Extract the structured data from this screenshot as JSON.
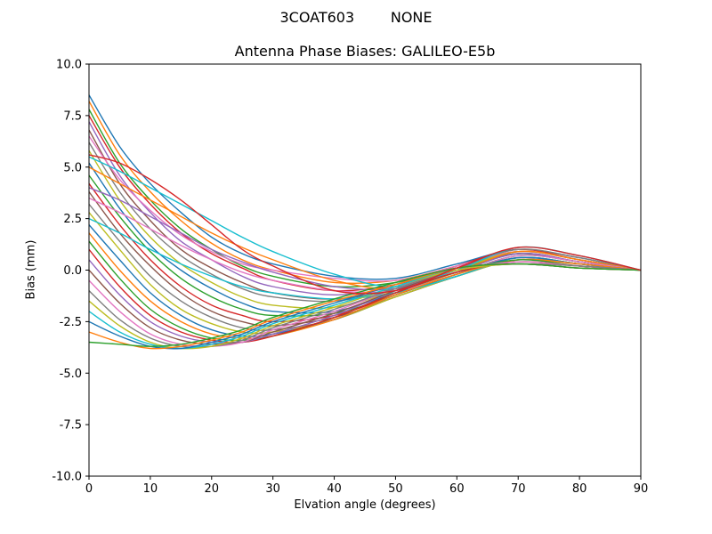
{
  "chart_data": {
    "type": "line",
    "suptitle": "3COAT603        NONE",
    "title": "Antenna Phase Biases: GALILEO-E5b",
    "xlabel": "Elvation angle (degrees)",
    "ylabel": "Bias (mm)",
    "xlim": [
      0,
      90
    ],
    "ylim": [
      -10,
      10
    ],
    "grid": false,
    "legend": "none",
    "xticks": [
      {
        "v": 0,
        "label": "0"
      },
      {
        "v": 10,
        "label": "10"
      },
      {
        "v": 20,
        "label": "20"
      },
      {
        "v": 30,
        "label": "30"
      },
      {
        "v": 40,
        "label": "40"
      },
      {
        "v": 50,
        "label": "50"
      },
      {
        "v": 60,
        "label": "60"
      },
      {
        "v": 70,
        "label": "70"
      },
      {
        "v": 80,
        "label": "80"
      },
      {
        "v": 90,
        "label": "90"
      }
    ],
    "yticks": [
      {
        "v": 10,
        "label": "10.0"
      },
      {
        "v": 7.5,
        "label": "7.5"
      },
      {
        "v": 5,
        "label": "5.0"
      },
      {
        "v": 2.5,
        "label": "2.5"
      },
      {
        "v": 0,
        "label": "0.0"
      },
      {
        "v": -2.5,
        "label": "-2.5"
      },
      {
        "v": -5,
        "label": "-5.0"
      },
      {
        "v": -7.5,
        "label": "-7.5"
      },
      {
        "v": -10,
        "label": "-10.0"
      }
    ],
    "x": [
      0,
      5,
      10,
      15,
      20,
      25,
      30,
      40,
      50,
      60,
      70,
      80,
      90
    ],
    "series": [
      {
        "color": "#1f77b4",
        "values": [
          8.5,
          6.0,
          4.2,
          2.8,
          1.6,
          0.8,
          0.3,
          -0.3,
          -0.4,
          0.3,
          1.0,
          0.6,
          0.0
        ]
      },
      {
        "color": "#ff7f0e",
        "values": [
          8.2,
          5.6,
          3.8,
          2.4,
          1.3,
          0.5,
          0.0,
          -0.6,
          -0.5,
          0.2,
          0.9,
          0.5,
          0.0
        ]
      },
      {
        "color": "#2ca02c",
        "values": [
          7.8,
          5.2,
          3.4,
          2.0,
          1.0,
          0.2,
          -0.3,
          -0.8,
          -0.6,
          0.1,
          0.8,
          0.4,
          0.0
        ]
      },
      {
        "color": "#d62728",
        "values": [
          7.5,
          5.0,
          3.2,
          1.8,
          0.8,
          0.1,
          -0.5,
          -1.0,
          -0.7,
          0.2,
          1.0,
          0.5,
          0.0
        ]
      },
      {
        "color": "#9467bd",
        "values": [
          7.2,
          4.6,
          2.8,
          1.4,
          0.5,
          -0.3,
          -0.8,
          -1.2,
          -0.8,
          0.1,
          0.9,
          0.5,
          0.0
        ]
      },
      {
        "color": "#8c564b",
        "values": [
          6.8,
          4.2,
          2.4,
          1.0,
          0.1,
          -0.6,
          -1.1,
          -1.4,
          -0.9,
          0.0,
          0.8,
          0.4,
          0.0
        ]
      },
      {
        "color": "#e377c2",
        "values": [
          6.5,
          4.4,
          2.9,
          1.7,
          0.9,
          0.3,
          0.0,
          -0.4,
          -0.5,
          0.2,
          0.9,
          0.5,
          0.0
        ]
      },
      {
        "color": "#7f7f7f",
        "values": [
          6.2,
          3.8,
          2.0,
          0.7,
          -0.2,
          -0.9,
          -1.3,
          -1.5,
          -0.9,
          0.1,
          1.0,
          0.6,
          0.0
        ]
      },
      {
        "color": "#bcbd22",
        "values": [
          5.8,
          3.4,
          1.6,
          0.3,
          -0.6,
          -1.3,
          -1.7,
          -1.8,
          -1.0,
          0.0,
          0.9,
          0.5,
          0.0
        ]
      },
      {
        "color": "#17becf",
        "values": [
          5.5,
          4.8,
          4.0,
          3.2,
          2.4,
          1.6,
          0.9,
          -0.2,
          -0.8,
          0.0,
          1.1,
          0.7,
          0.0
        ]
      },
      {
        "color": "#1f77b4",
        "values": [
          5.2,
          3.0,
          1.2,
          0.0,
          -0.9,
          -1.6,
          -2.0,
          -2.0,
          -1.1,
          -0.1,
          0.8,
          0.4,
          0.0
        ]
      },
      {
        "color": "#ff7f0e",
        "values": [
          5.0,
          4.2,
          3.4,
          2.6,
          1.8,
          1.1,
          0.5,
          -0.5,
          -0.9,
          -0.1,
          0.9,
          0.5,
          0.0
        ]
      },
      {
        "color": "#2ca02c",
        "values": [
          4.6,
          2.6,
          0.9,
          -0.4,
          -1.3,
          -1.9,
          -2.2,
          -2.1,
          -1.2,
          -0.2,
          0.7,
          0.4,
          0.0
        ]
      },
      {
        "color": "#d62728",
        "values": [
          4.2,
          2.2,
          0.5,
          -0.8,
          -1.7,
          -2.2,
          -2.5,
          -2.2,
          -1.2,
          -0.2,
          0.6,
          0.3,
          0.0
        ]
      },
      {
        "color": "#9467bd",
        "values": [
          4.0,
          3.4,
          2.6,
          1.8,
          1.0,
          0.4,
          -0.1,
          -0.8,
          -0.9,
          -0.1,
          0.8,
          0.4,
          0.0
        ]
      },
      {
        "color": "#8c564b",
        "values": [
          3.8,
          1.8,
          0.2,
          -1.1,
          -2.0,
          -2.5,
          -2.7,
          -2.3,
          -1.3,
          -0.3,
          0.6,
          0.3,
          0.0
        ]
      },
      {
        "color": "#e377c2",
        "values": [
          3.5,
          2.8,
          2.0,
          1.2,
          0.5,
          -0.1,
          -0.5,
          -1.0,
          -1.0,
          -0.2,
          0.7,
          0.4,
          0.0
        ]
      },
      {
        "color": "#7f7f7f",
        "values": [
          3.2,
          1.4,
          -0.3,
          -1.5,
          -2.3,
          -2.8,
          -2.9,
          -2.4,
          -1.3,
          -0.3,
          0.5,
          0.3,
          0.0
        ]
      },
      {
        "color": "#bcbd22",
        "values": [
          2.8,
          1.0,
          -0.7,
          -1.9,
          -2.6,
          -3.0,
          -3.0,
          -2.4,
          -1.3,
          -0.3,
          0.5,
          0.2,
          0.0
        ]
      },
      {
        "color": "#17becf",
        "values": [
          2.5,
          1.8,
          1.0,
          0.3,
          -0.3,
          -0.8,
          -1.1,
          -1.4,
          -1.1,
          -0.3,
          0.6,
          0.3,
          0.0
        ]
      },
      {
        "color": "#1f77b4",
        "values": [
          2.2,
          0.5,
          -1.1,
          -2.2,
          -2.9,
          -3.2,
          -3.1,
          -2.4,
          -1.2,
          -0.2,
          0.6,
          0.3,
          0.0
        ]
      },
      {
        "color": "#ff7f0e",
        "values": [
          1.8,
          0.0,
          -1.5,
          -2.5,
          -3.1,
          -3.3,
          -3.2,
          -2.4,
          -1.2,
          -0.2,
          0.5,
          0.3,
          0.0
        ]
      },
      {
        "color": "#2ca02c",
        "values": [
          1.4,
          -0.4,
          -1.9,
          -2.8,
          -3.3,
          -3.4,
          -3.2,
          -2.3,
          -1.1,
          -0.1,
          0.5,
          0.2,
          0.0
        ]
      },
      {
        "color": "#d62728",
        "values": [
          1.0,
          -0.8,
          -2.2,
          -3.0,
          -3.4,
          -3.5,
          -3.2,
          -2.3,
          -1.1,
          -0.1,
          0.4,
          0.2,
          0.0
        ]
      },
      {
        "color": "#9467bd",
        "values": [
          0.5,
          -1.2,
          -2.5,
          -3.2,
          -3.5,
          -3.5,
          -3.1,
          -2.2,
          -1.0,
          0.0,
          0.4,
          0.2,
          0.0
        ]
      },
      {
        "color": "#8c564b",
        "values": [
          0.0,
          -1.6,
          -2.8,
          -3.4,
          -3.6,
          -3.5,
          -3.0,
          -2.1,
          -1.0,
          0.0,
          0.4,
          0.2,
          0.0
        ]
      },
      {
        "color": "#e377c2",
        "values": [
          -0.5,
          -2.0,
          -3.1,
          -3.6,
          -3.7,
          -3.5,
          -2.9,
          -2.0,
          -0.9,
          0.0,
          0.4,
          0.2,
          0.0
        ]
      },
      {
        "color": "#7f7f7f",
        "values": [
          -1.0,
          -2.4,
          -3.3,
          -3.7,
          -3.7,
          -3.4,
          -2.8,
          -1.9,
          -0.9,
          0.0,
          0.3,
          0.2,
          0.0
        ]
      },
      {
        "color": "#bcbd22",
        "values": [
          -1.5,
          -2.7,
          -3.5,
          -3.8,
          -3.7,
          -3.3,
          -2.7,
          -1.8,
          -0.8,
          0.0,
          0.3,
          0.1,
          0.0
        ]
      },
      {
        "color": "#17becf",
        "values": [
          -2.0,
          -3.0,
          -3.6,
          -3.8,
          -3.6,
          -3.2,
          -2.6,
          -1.7,
          -0.8,
          0.1,
          0.3,
          0.1,
          0.0
        ]
      },
      {
        "color": "#1f77b4",
        "values": [
          -2.5,
          -3.2,
          -3.7,
          -3.8,
          -3.5,
          -3.1,
          -2.5,
          -1.6,
          -0.7,
          0.1,
          0.3,
          0.1,
          0.0
        ]
      },
      {
        "color": "#ff7f0e",
        "values": [
          -3.0,
          -3.5,
          -3.8,
          -3.7,
          -3.4,
          -3.0,
          -2.4,
          -1.5,
          -0.7,
          0.1,
          0.3,
          0.1,
          0.0
        ]
      },
      {
        "color": "#2ca02c",
        "values": [
          -3.5,
          -3.6,
          -3.7,
          -3.6,
          -3.3,
          -2.9,
          -2.3,
          -1.4,
          -0.6,
          0.1,
          0.3,
          0.1,
          0.0
        ]
      },
      {
        "color": "#d62728",
        "values": [
          5.6,
          5.2,
          4.4,
          3.4,
          2.2,
          1.0,
          0.2,
          -1.0,
          -1.0,
          0.1,
          1.1,
          0.7,
          0.0
        ]
      }
    ]
  }
}
